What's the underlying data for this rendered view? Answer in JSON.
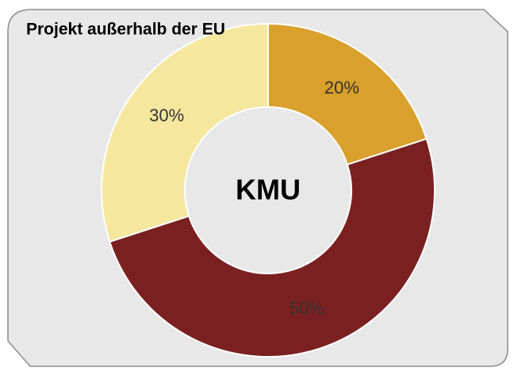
{
  "chart_data": {
    "type": "pie",
    "title": "Projekt außerhalb der EU",
    "center_label": "KMU",
    "values": [
      20,
      50,
      30
    ],
    "value_labels": [
      "20%",
      "50%",
      "30%"
    ],
    "colors": [
      "#d9a02b",
      "#7b2020",
      "#f5e79e"
    ],
    "donut": true
  }
}
